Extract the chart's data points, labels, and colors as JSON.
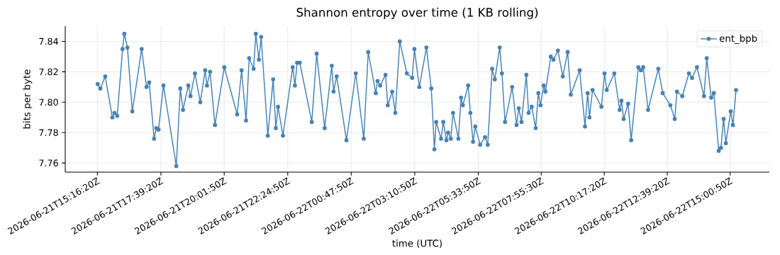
{
  "chart_data": {
    "type": "line",
    "title": "Shannon entropy over time (1 KB rolling)",
    "xlabel": "time (UTC)",
    "ylabel": "bits per byte",
    "x": [
      "2026-06-21T15:17",
      "2026-06-21T15:23",
      "2026-06-21T15:34",
      "2026-06-21T15:50",
      "2026-06-21T15:55",
      "2026-06-21T16:01",
      "2026-06-21T16:13",
      "2026-06-21T16:17",
      "2026-06-21T16:24",
      "2026-06-21T16:35",
      "2026-06-21T16:56",
      "2026-06-21T17:07",
      "2026-06-21T17:13",
      "2026-06-21T17:24",
      "2026-06-21T17:29",
      "2026-06-21T17:34",
      "2026-06-21T17:45",
      "2026-06-21T18:14",
      "2026-06-21T18:23",
      "2026-06-21T18:29",
      "2026-06-21T18:41",
      "2026-06-21T18:46",
      "2026-06-21T18:56",
      "2026-06-21T19:08",
      "2026-06-21T19:19",
      "2026-06-21T19:23",
      "2026-06-21T19:30",
      "2026-06-21T19:41",
      "2026-06-21T20:02",
      "2026-06-21T20:31",
      "2026-06-21T20:41",
      "2026-06-21T20:51",
      "2026-06-21T20:58",
      "2026-06-21T21:08",
      "2026-06-21T21:13",
      "2026-06-21T21:20",
      "2026-06-21T21:25",
      "2026-06-21T21:40",
      "2026-06-21T21:52",
      "2026-06-21T21:58",
      "2026-06-21T22:03",
      "2026-06-21T22:14",
      "2026-06-21T22:36",
      "2026-06-21T22:41",
      "2026-06-21T22:46",
      "2026-06-21T22:52",
      "2026-06-21T23:19",
      "2026-06-21T23:30",
      "2026-06-21T23:48",
      "2026-06-22T00:04",
      "2026-06-22T00:08",
      "2026-06-22T00:15",
      "2026-06-22T00:37",
      "2026-06-22T00:58",
      "2026-06-22T01:16",
      "2026-06-22T01:26",
      "2026-06-22T01:43",
      "2026-06-22T01:47",
      "2026-06-22T01:53",
      "2026-06-22T02:05",
      "2026-06-22T02:10",
      "2026-06-22T02:20",
      "2026-06-22T02:27",
      "2026-06-22T02:37",
      "2026-06-22T02:53",
      "2026-06-22T03:05",
      "2026-06-22T03:10",
      "2026-06-22T03:21",
      "2026-06-22T03:37",
      "2026-06-22T03:48",
      "2026-06-22T03:55",
      "2026-06-22T03:59",
      "2026-06-22T04:10",
      "2026-06-22T04:15",
      "2026-06-22T04:22",
      "2026-06-22T04:26",
      "2026-06-22T04:32",
      "2026-06-22T04:37",
      "2026-06-22T04:49",
      "2026-06-22T04:55",
      "2026-06-22T04:59",
      "2026-06-22T05:11",
      "2026-06-22T05:16",
      "2026-06-22T05:22",
      "2026-06-22T05:27",
      "2026-06-22T05:38",
      "2026-06-22T05:49",
      "2026-06-22T05:55",
      "2026-06-22T06:05",
      "2026-06-22T06:11",
      "2026-06-22T06:22",
      "2026-06-22T06:27",
      "2026-06-22T06:34",
      "2026-06-22T06:50",
      "2026-06-22T07:00",
      "2026-06-22T07:05",
      "2026-06-22T07:11",
      "2026-06-22T07:22",
      "2026-06-22T07:27",
      "2026-06-22T07:34",
      "2026-06-22T07:43",
      "2026-06-22T07:49",
      "2026-06-22T07:54",
      "2026-06-22T08:01",
      "2026-06-22T08:05",
      "2026-06-22T08:17",
      "2026-06-22T08:23",
      "2026-06-22T08:33",
      "2026-06-22T08:44",
      "2026-06-22T08:55",
      "2026-06-22T09:02",
      "2026-06-22T09:22",
      "2026-06-22T09:34",
      "2026-06-22T09:40",
      "2026-06-22T09:44",
      "2026-06-22T09:51",
      "2026-06-22T10:11",
      "2026-06-22T10:18",
      "2026-06-22T10:23",
      "2026-06-22T10:40",
      "2026-06-22T10:52",
      "2026-06-22T10:56",
      "2026-06-22T11:01",
      "2026-06-22T11:11",
      "2026-06-22T11:18",
      "2026-06-22T11:34",
      "2026-06-22T11:40",
      "2026-06-22T11:45",
      "2026-06-22T11:56",
      "2026-06-22T12:19",
      "2026-06-22T12:29",
      "2026-06-22T12:46",
      "2026-06-22T12:56",
      "2026-06-22T13:01",
      "2026-06-22T13:13",
      "2026-06-22T13:28",
      "2026-06-22T13:35",
      "2026-06-22T13:46",
      "2026-06-22T14:02",
      "2026-06-22T14:08",
      "2026-06-22T14:18",
      "2026-06-22T14:24",
      "2026-06-22T14:35",
      "2026-06-22T14:40",
      "2026-06-22T14:46",
      "2026-06-22T14:51",
      "2026-06-22T15:02",
      "2026-06-22T15:07",
      "2026-06-22T15:14"
    ],
    "series": [
      {
        "name": "ent_bpb",
        "color": "#4682b4",
        "values": [
          7.812,
          7.809,
          7.817,
          7.79,
          7.793,
          7.791,
          7.835,
          7.845,
          7.836,
          7.794,
          7.835,
          7.81,
          7.813,
          7.776,
          7.783,
          7.782,
          7.811,
          7.758,
          7.809,
          7.795,
          7.811,
          7.804,
          7.819,
          7.8,
          7.821,
          7.811,
          7.82,
          7.785,
          7.823,
          7.792,
          7.821,
          7.788,
          7.829,
          7.822,
          7.845,
          7.828,
          7.843,
          7.778,
          7.815,
          7.783,
          7.797,
          7.778,
          7.823,
          7.811,
          7.826,
          7.826,
          7.787,
          7.832,
          7.783,
          7.824,
          7.807,
          7.817,
          7.775,
          7.819,
          7.776,
          7.833,
          7.806,
          7.814,
          7.811,
          7.818,
          7.798,
          7.807,
          7.793,
          7.84,
          7.819,
          7.816,
          7.835,
          7.81,
          7.836,
          7.809,
          7.769,
          7.787,
          7.776,
          7.787,
          7.775,
          7.78,
          7.776,
          7.793,
          7.776,
          7.803,
          7.798,
          7.811,
          7.793,
          7.774,
          7.784,
          7.772,
          7.777,
          7.772,
          7.822,
          7.815,
          7.836,
          7.819,
          7.787,
          7.81,
          7.785,
          7.796,
          7.787,
          7.818,
          7.793,
          7.797,
          7.783,
          7.806,
          7.798,
          7.811,
          7.807,
          7.83,
          7.828,
          7.834,
          7.817,
          7.833,
          7.805,
          7.821,
          7.784,
          7.806,
          7.79,
          7.808,
          7.797,
          7.819,
          7.808,
          7.819,
          7.795,
          7.801,
          7.789,
          7.799,
          7.775,
          7.823,
          7.821,
          7.823,
          7.795,
          7.822,
          7.806,
          7.798,
          7.789,
          7.807,
          7.804,
          7.819,
          7.816,
          7.823,
          7.804,
          7.829,
          7.803,
          7.806,
          7.768,
          7.77,
          7.789,
          7.773,
          7.794,
          7.785,
          7.808
        ]
      }
    ],
    "xlim": [
      "2026-06-21T14:04",
      "2026-06-22T16:29"
    ],
    "ylim": [
      7.754,
      7.85
    ],
    "xticks": [
      {
        "value": "2026-06-21T15:16:20",
        "label": "2026-06-21T15:16:20Z"
      },
      {
        "value": "2026-06-21T17:39:20",
        "label": "2026-06-21T17:39:20Z"
      },
      {
        "value": "2026-06-21T20:01:50",
        "label": "2026-06-21T20:01:50Z"
      },
      {
        "value": "2026-06-21T22:24:50",
        "label": "2026-06-21T22:24:50Z"
      },
      {
        "value": "2026-06-22T00:47:50",
        "label": "2026-06-22T00:47:50Z"
      },
      {
        "value": "2026-06-22T03:10:50",
        "label": "2026-06-22T03:10:50Z"
      },
      {
        "value": "2026-06-22T05:33:50",
        "label": "2026-06-22T05:33:50Z"
      },
      {
        "value": "2026-06-22T07:55:30",
        "label": "2026-06-22T07:55:30Z"
      },
      {
        "value": "2026-06-22T10:17:20",
        "label": "2026-06-22T10:17:20Z"
      },
      {
        "value": "2026-06-22T12:39:20",
        "label": "2026-06-22T12:39:20Z"
      },
      {
        "value": "2026-06-22T15:00:50",
        "label": "2026-06-22T15:00:50Z"
      }
    ],
    "yticks": [
      7.76,
      7.78,
      {
        "value": 7.8,
        "label": "7.80"
      },
      7.82,
      7.84
    ],
    "grid": true,
    "legend": "top right",
    "marker": "circle",
    "line_style": "solid"
  }
}
